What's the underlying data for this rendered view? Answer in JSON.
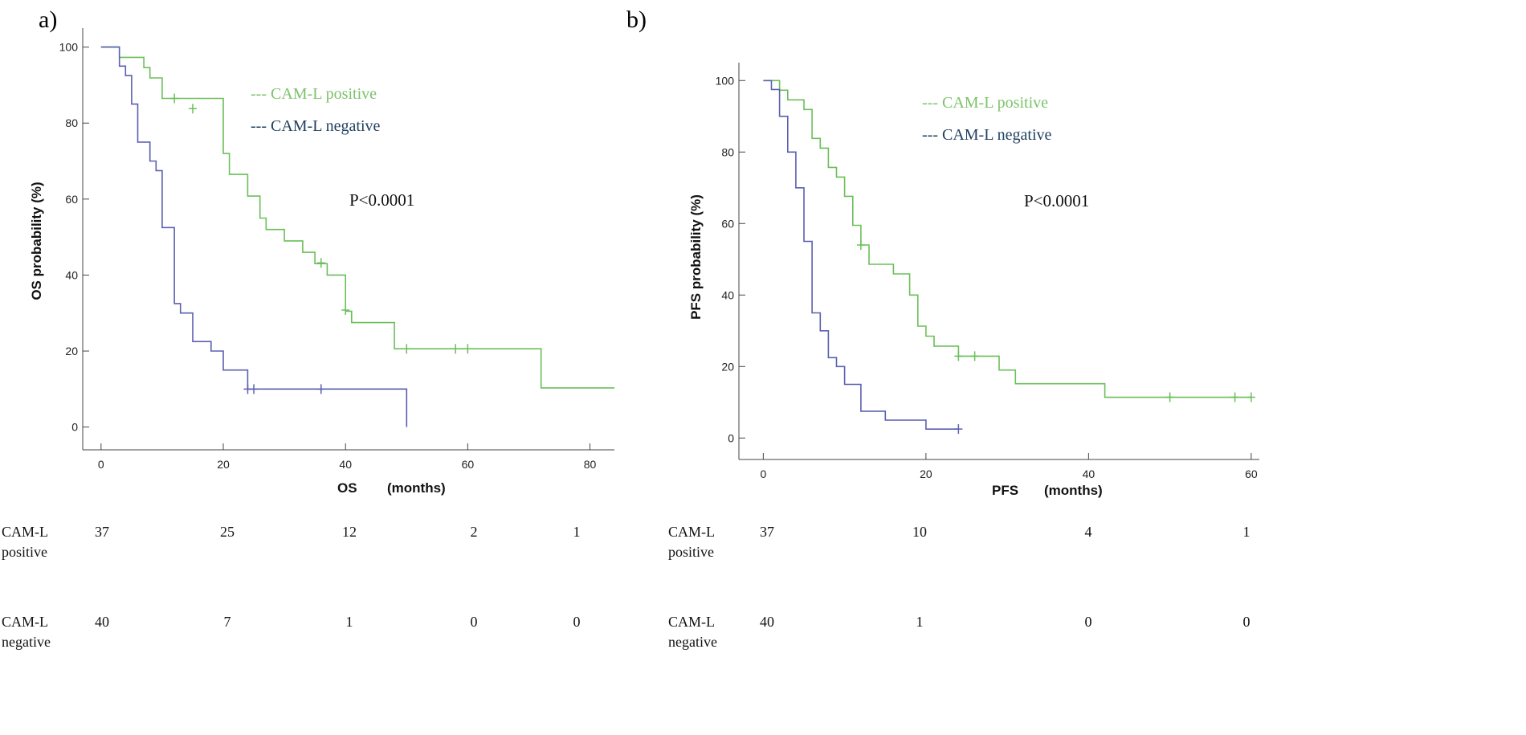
{
  "colors": {
    "positive": "#6BBF59",
    "negative": "#5A5FB0",
    "legend_positive": "#7CC26A",
    "legend_negative": "#1E3F5E"
  },
  "chart_data": [
    {
      "type": "line",
      "panel_label": "a)",
      "xlabel": "OS",
      "xlabel_units": "(months)",
      "ylabel": "OS probability (%)",
      "xlim": [
        -3,
        84
      ],
      "ylim": [
        -6,
        105
      ],
      "xticks": [
        0,
        20,
        40,
        60,
        80
      ],
      "yticks": [
        0,
        20,
        40,
        60,
        80,
        100
      ],
      "pvalue": "P<0.0001",
      "series": [
        {
          "name": "CAM-L positive",
          "legend_label": "--- CAM-L positive",
          "steps": [
            [
              0,
              100
            ],
            [
              3,
              100
            ],
            [
              3,
              97.3
            ],
            [
              7,
              97.3
            ],
            [
              7,
              94.6
            ],
            [
              8,
              94.6
            ],
            [
              8,
              91.9
            ],
            [
              10,
              91.9
            ],
            [
              10,
              86.5
            ],
            [
              20,
              86.5
            ],
            [
              20,
              83.8
            ],
            [
              20,
              72
            ],
            [
              21,
              72
            ],
            [
              21,
              66.5
            ],
            [
              24,
              66.5
            ],
            [
              24,
              60.8
            ],
            [
              26,
              60.8
            ],
            [
              26,
              55
            ],
            [
              27,
              55
            ],
            [
              27,
              52
            ],
            [
              30,
              52
            ],
            [
              30,
              49
            ],
            [
              33,
              49
            ],
            [
              33,
              46
            ],
            [
              35,
              46
            ],
            [
              35,
              43
            ],
            [
              37,
              43
            ],
            [
              37,
              40
            ],
            [
              40,
              40
            ],
            [
              40,
              30.5
            ],
            [
              41,
              30.5
            ],
            [
              41,
              27.5
            ],
            [
              48,
              27.5
            ],
            [
              48,
              20.6
            ],
            [
              72,
              20.6
            ],
            [
              72,
              10.3
            ],
            [
              84,
              10.3
            ]
          ],
          "censors": [
            [
              12,
              86.5
            ],
            [
              15,
              83.8
            ],
            [
              36,
              43.2
            ],
            [
              40,
              30.8
            ],
            [
              50,
              20.6
            ],
            [
              58,
              20.6
            ],
            [
              60,
              20.6
            ]
          ]
        },
        {
          "name": "CAM-L negative",
          "legend_label": "--- CAM-L negative",
          "steps": [
            [
              0,
              100
            ],
            [
              3,
              100
            ],
            [
              3,
              95
            ],
            [
              4,
              95
            ],
            [
              4,
              92.5
            ],
            [
              5,
              92.5
            ],
            [
              5,
              85
            ],
            [
              6,
              85
            ],
            [
              6,
              75
            ],
            [
              8,
              75
            ],
            [
              8,
              70
            ],
            [
              9,
              70
            ],
            [
              9,
              67.5
            ],
            [
              10,
              67.5
            ],
            [
              10,
              52.5
            ],
            [
              12,
              52.5
            ],
            [
              12,
              32.5
            ],
            [
              13,
              32.5
            ],
            [
              13,
              30
            ],
            [
              15,
              30
            ],
            [
              15,
              22.5
            ],
            [
              18,
              22.5
            ],
            [
              18,
              20
            ],
            [
              20,
              20
            ],
            [
              20,
              15
            ],
            [
              24,
              15
            ],
            [
              24,
              10
            ],
            [
              50,
              10
            ],
            [
              50,
              0
            ]
          ],
          "censors": [
            [
              24,
              10
            ],
            [
              25,
              10
            ],
            [
              36,
              10
            ]
          ]
        }
      ],
      "risk_table": {
        "times": [
          0,
          20,
          40,
          60,
          80
        ],
        "rows": [
          {
            "label_line1": "CAM-L",
            "label_line2": "positive",
            "values": [
              "37",
              "25",
              "12",
              "2",
              "1"
            ]
          },
          {
            "label_line1": "CAM-L",
            "label_line2": "negative",
            "values": [
              "40",
              "7",
              "1",
              "0",
              "0"
            ]
          }
        ]
      }
    },
    {
      "type": "line",
      "panel_label": "b)",
      "xlabel": "PFS",
      "xlabel_units": "(months)",
      "ylabel": "PFS probability (%)",
      "xlim": [
        -3,
        61
      ],
      "ylim": [
        -6,
        105
      ],
      "xticks": [
        0,
        20,
        40,
        60
      ],
      "yticks": [
        0,
        20,
        40,
        60,
        80,
        100
      ],
      "pvalue": "P<0.0001",
      "series": [
        {
          "name": "CAM-L positive",
          "legend_label": "--- CAM-L positive",
          "steps": [
            [
              0,
              100
            ],
            [
              2,
              100
            ],
            [
              2,
              97.3
            ],
            [
              3,
              97.3
            ],
            [
              3,
              94.6
            ],
            [
              5,
              94.6
            ],
            [
              5,
              91.9
            ],
            [
              6,
              91.9
            ],
            [
              6,
              83.8
            ],
            [
              7,
              83.8
            ],
            [
              7,
              81.1
            ],
            [
              8,
              81.1
            ],
            [
              8,
              75.7
            ],
            [
              9,
              75.7
            ],
            [
              9,
              73
            ],
            [
              10,
              73
            ],
            [
              10,
              67.6
            ],
            [
              11,
              67.6
            ],
            [
              11,
              59.5
            ],
            [
              12,
              59.5
            ],
            [
              12,
              54
            ],
            [
              13,
              54
            ],
            [
              13,
              48.6
            ],
            [
              16,
              48.6
            ],
            [
              16,
              45.9
            ],
            [
              18,
              45.9
            ],
            [
              18,
              40
            ],
            [
              19,
              40
            ],
            [
              19,
              31.3
            ],
            [
              20,
              31.3
            ],
            [
              20,
              28.5
            ],
            [
              21,
              28.5
            ],
            [
              21,
              25.7
            ],
            [
              24,
              25.7
            ],
            [
              24,
              22.9
            ],
            [
              29,
              22.9
            ],
            [
              29,
              19
            ],
            [
              31,
              19
            ],
            [
              31,
              15.2
            ],
            [
              42,
              15.2
            ],
            [
              42,
              11.4
            ],
            [
              60,
              11.4
            ]
          ],
          "censors": [
            [
              12,
              54
            ],
            [
              24,
              22.9
            ],
            [
              26,
              22.9
            ],
            [
              50,
              11.4
            ],
            [
              58,
              11.4
            ],
            [
              60,
              11.4
            ]
          ]
        },
        {
          "name": "CAM-L negative",
          "legend_label": "--- CAM-L negative",
          "steps": [
            [
              0,
              100
            ],
            [
              1,
              100
            ],
            [
              1,
              97.5
            ],
            [
              2,
              97.5
            ],
            [
              2,
              90
            ],
            [
              3,
              90
            ],
            [
              3,
              80
            ],
            [
              4,
              80
            ],
            [
              4,
              70
            ],
            [
              5,
              70
            ],
            [
              5,
              55
            ],
            [
              6,
              55
            ],
            [
              6,
              35
            ],
            [
              7,
              35
            ],
            [
              7,
              30
            ],
            [
              8,
              30
            ],
            [
              8,
              22.5
            ],
            [
              9,
              22.5
            ],
            [
              9,
              20
            ],
            [
              10,
              20
            ],
            [
              10,
              15
            ],
            [
              12,
              15
            ],
            [
              12,
              7.5
            ],
            [
              15,
              7.5
            ],
            [
              15,
              5
            ],
            [
              20,
              5
            ],
            [
              20,
              2.5
            ],
            [
              24,
              2.5
            ]
          ],
          "censors": [
            [
              24,
              2.5
            ]
          ]
        }
      ],
      "risk_table": {
        "times": [
          0,
          20,
          40,
          60
        ],
        "rows": [
          {
            "label_line1": "CAM-L",
            "label_line2": "positive",
            "values": [
              "37",
              "10",
              "4",
              "1"
            ]
          },
          {
            "label_line1": "CAM-L",
            "label_line2": "negative",
            "values": [
              "40",
              "1",
              "0",
              "0"
            ]
          }
        ]
      }
    }
  ]
}
